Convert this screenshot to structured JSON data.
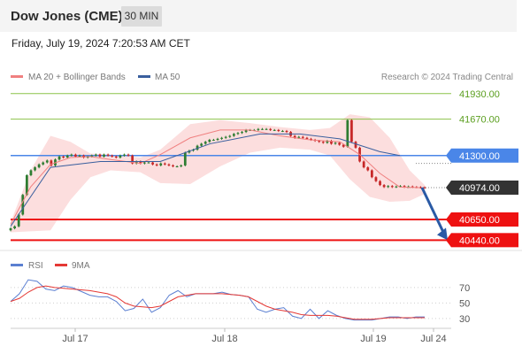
{
  "header": {
    "title": "Dow Jones (CME)",
    "interval": "30 MIN"
  },
  "timestamp": "Friday, July 19, 2024 7:20:53 AM CET",
  "colors": {
    "up": "#2e7d32",
    "down": "#c62828",
    "ma20": "#f08080",
    "bollinger": "#fbd3d3",
    "ma50": "#3a5f9e",
    "resistance": "#8bc34a",
    "pivot": "#4a86e8",
    "support": "#ee1111",
    "last": "#333333",
    "forecast": "#2a5aa5",
    "rsi": "#5b7fd1",
    "rsi_ma": "#e53935"
  },
  "chart_data": [
    {
      "type": "candlestick",
      "legend": {
        "ma20": "MA 20 + Bollinger Bands",
        "ma50": "MA 50"
      },
      "copyright": "Research © 2024 Trading Central",
      "y_range": [
        40380,
        42000
      ],
      "x_labels": [
        "Jul 17",
        "Jul 18",
        "Jul 19",
        "Jul 24"
      ],
      "levels": [
        {
          "value": 41930,
          "label": "41930.00",
          "kind": "resistance"
        },
        {
          "value": 41670,
          "label": "41670.00",
          "kind": "resistance"
        },
        {
          "value": 41300,
          "label": "41300.00",
          "kind": "pivot"
        },
        {
          "value": 40974,
          "label": "40974.00",
          "kind": "last"
        },
        {
          "value": 40650,
          "label": "40650.00",
          "kind": "support"
        },
        {
          "value": 40440,
          "label": "40440.00",
          "kind": "support"
        }
      ],
      "forecast_target": 40440,
      "closes": [
        40560,
        40580,
        40700,
        40900,
        41100,
        41150,
        41180,
        41210,
        41230,
        41250,
        41200,
        41260,
        41290,
        41280,
        41300,
        41310,
        41290,
        41300,
        41280,
        41290,
        41300,
        41310,
        41290,
        41310,
        41300,
        41290,
        41280,
        41300,
        41310,
        41300,
        41220,
        41240,
        41220,
        41230,
        41230,
        41210,
        41200,
        41220,
        41210,
        41200,
        41190,
        41190,
        41200,
        41330,
        41350,
        41360,
        41400,
        41420,
        41440,
        41460,
        41460,
        41470,
        41480,
        41490,
        41500,
        41520,
        41530,
        41540,
        41560,
        41560,
        41560,
        41570,
        41570,
        41570,
        41560,
        41560,
        41550,
        41550,
        41540,
        41500,
        41480,
        41490,
        41480,
        41470,
        41460,
        41450,
        41440,
        41430,
        41450,
        41420,
        41430,
        41410,
        41390,
        41660,
        41440,
        41380,
        41240,
        41180,
        41150,
        41080,
        41040,
        41000,
        40980,
        40990,
        40980,
        40985,
        40990,
        40980,
        40985,
        40980,
        40978,
        40976,
        40974
      ],
      "ma50_points": [
        [
          0,
          40580
        ],
        [
          40,
          41180
        ],
        [
          90,
          41240
        ],
        [
          150,
          41240
        ],
        [
          200,
          41420
        ],
        [
          250,
          41520
        ],
        [
          290,
          41520
        ],
        [
          330,
          41470
        ],
        [
          370,
          41340
        ],
        [
          390,
          41300
        ]
      ],
      "ma20_points": [
        [
          0,
          40600
        ],
        [
          20,
          40980
        ],
        [
          40,
          41210
        ],
        [
          60,
          41280
        ],
        [
          80,
          41290
        ],
        [
          100,
          41260
        ],
        [
          130,
          41220
        ],
        [
          150,
          41310
        ],
        [
          180,
          41480
        ],
        [
          210,
          41560
        ],
        [
          240,
          41560
        ],
        [
          270,
          41500
        ],
        [
          300,
          41460
        ],
        [
          330,
          41440
        ],
        [
          350,
          41310
        ],
        [
          370,
          41120
        ],
        [
          390,
          40980
        ],
        [
          410,
          40974
        ]
      ],
      "bb_upper": [
        [
          0,
          40620
        ],
        [
          20,
          41150
        ],
        [
          40,
          41500
        ],
        [
          60,
          41440
        ],
        [
          80,
          41320
        ],
        [
          100,
          41310
        ],
        [
          130,
          41280
        ],
        [
          150,
          41360
        ],
        [
          180,
          41620
        ],
        [
          210,
          41660
        ],
        [
          240,
          41630
        ],
        [
          270,
          41590
        ],
        [
          300,
          41560
        ],
        [
          320,
          41580
        ],
        [
          340,
          41720
        ],
        [
          360,
          41690
        ],
        [
          380,
          41480
        ],
        [
          400,
          41150
        ],
        [
          415,
          41000
        ]
      ],
      "bb_lower": [
        [
          0,
          40520
        ],
        [
          20,
          40530
        ],
        [
          40,
          40540
        ],
        [
          60,
          40850
        ],
        [
          80,
          41080
        ],
        [
          100,
          41150
        ],
        [
          130,
          41130
        ],
        [
          150,
          41020
        ],
        [
          180,
          41010
        ],
        [
          210,
          41190
        ],
        [
          240,
          41330
        ],
        [
          270,
          41380
        ],
        [
          300,
          41360
        ],
        [
          320,
          41300
        ],
        [
          340,
          41060
        ],
        [
          360,
          40880
        ],
        [
          380,
          40830
        ],
        [
          400,
          40840
        ],
        [
          415,
          40910
        ]
      ]
    },
    {
      "type": "line",
      "legend": {
        "rsi": "RSI",
        "ma": "9MA"
      },
      "y_range": [
        23,
        87
      ],
      "y_ticks": [
        70,
        50,
        30
      ],
      "rsi": [
        52,
        62,
        80,
        78,
        68,
        66,
        72,
        70,
        65,
        60,
        58,
        58,
        52,
        40,
        43,
        55,
        38,
        44,
        60,
        66,
        58,
        62,
        62,
        62,
        64,
        61,
        60,
        58,
        42,
        38,
        42,
        44,
        33,
        30,
        42,
        30,
        40,
        34,
        30,
        28,
        28,
        28,
        30,
        32,
        32,
        30,
        32,
        32
      ],
      "ma9": [
        52,
        56,
        64,
        70,
        72,
        70,
        69,
        68,
        67,
        66,
        64,
        62,
        58,
        50,
        46,
        45,
        44,
        46,
        52,
        58,
        60,
        62,
        62,
        62,
        62,
        61,
        60,
        58,
        52,
        46,
        42,
        40,
        38,
        35,
        34,
        34,
        34,
        33,
        31,
        29,
        29,
        29,
        30,
        31,
        31,
        31,
        31,
        31
      ]
    }
  ]
}
